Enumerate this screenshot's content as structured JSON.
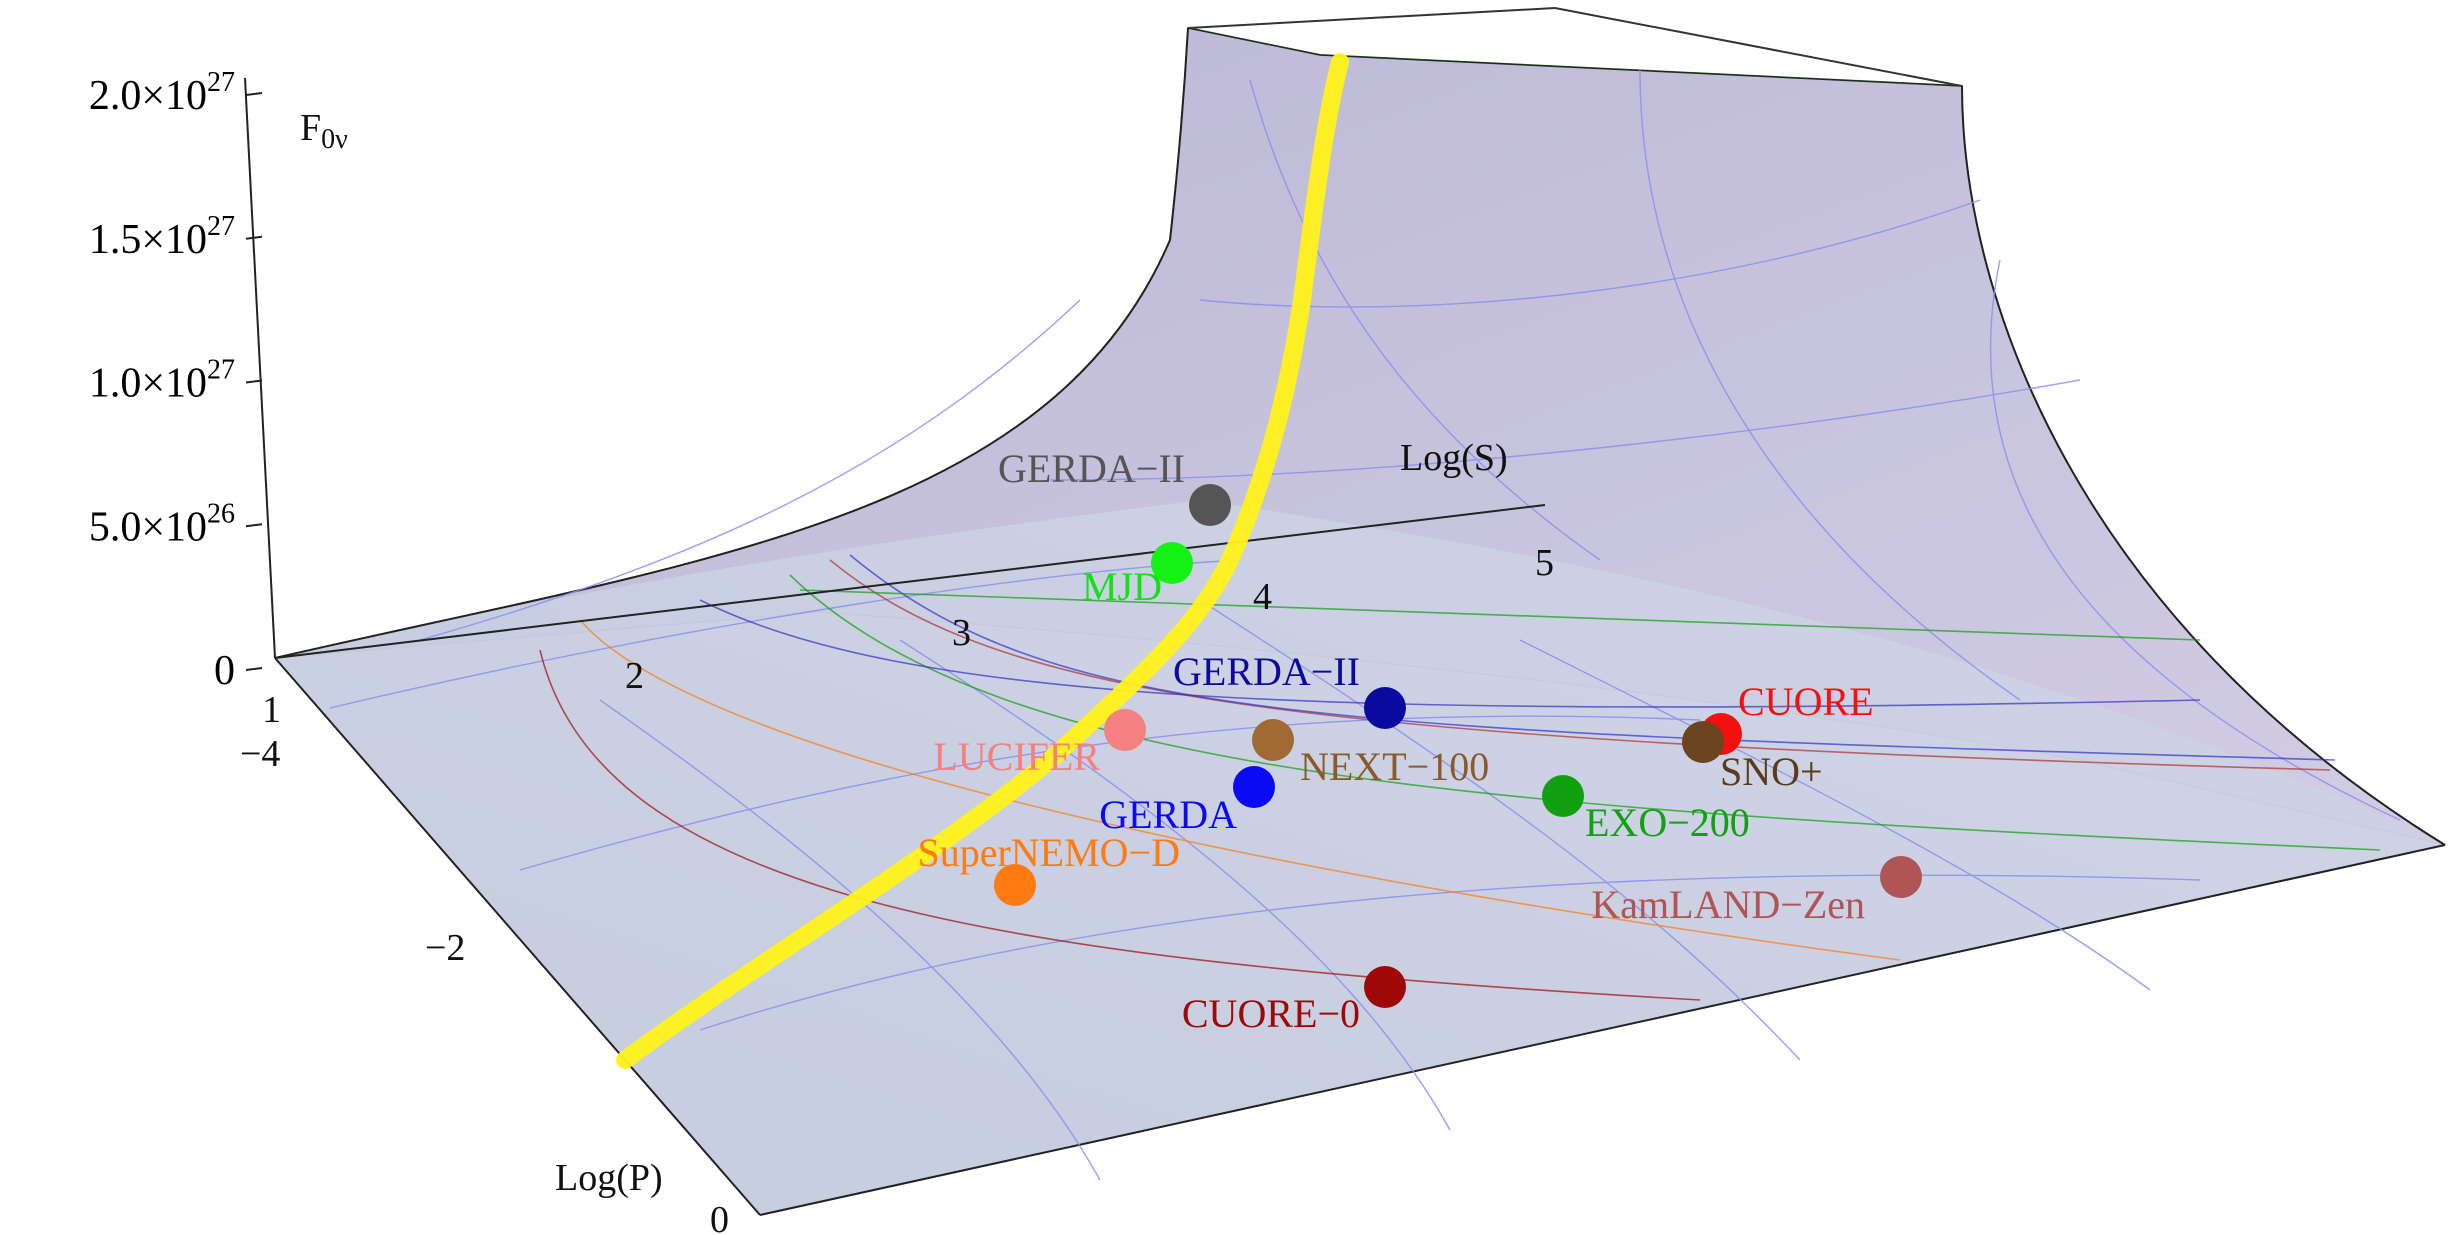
{
  "chart_data": {
    "type": "scatter",
    "title": "",
    "axes": {
      "z": {
        "label_main": "F",
        "label_sub": "0ν",
        "ticks": [
          {
            "value": 0,
            "mantissa": "0",
            "exp": ""
          },
          {
            "value": 5e+26,
            "mantissa": "5.0",
            "exp": "26"
          },
          {
            "value": 1e+27,
            "mantissa": "1.0",
            "exp": "27"
          },
          {
            "value": 1.5e+27,
            "mantissa": "1.5",
            "exp": "27"
          },
          {
            "value": 2e+27,
            "mantissa": "2.0",
            "exp": "27"
          }
        ],
        "times_symbol": "×10",
        "range": [
          0,
          2e+27
        ]
      },
      "x": {
        "label": "Log(S)",
        "ticks": [
          "1",
          "2",
          "3",
          "4",
          "5"
        ],
        "range": [
          1,
          5.5
        ]
      },
      "y": {
        "label": "Log(P)",
        "ticks": [
          "−4",
          "−2",
          "0"
        ],
        "range": [
          -4.5,
          0
        ]
      }
    },
    "surface": {
      "front_color": "#c5ccdf",
      "back_color": "#c9c4dc",
      "mesh_color": "#8a8ff0",
      "curve_color": "#fff21a"
    },
    "experiments": [
      {
        "name": "GERDA−II",
        "color": "#555555",
        "text_color": "#555555"
      },
      {
        "name": "MJD",
        "color": "#15f015",
        "text_color": "#15e015"
      },
      {
        "name": "GERDA−II",
        "color": "#0a0aa0",
        "text_color": "#0a0aa0"
      },
      {
        "name": "LUCIFER",
        "color": "#f58080",
        "text_color": "#f58080"
      },
      {
        "name": "NEXT−100",
        "color": "#a06a35",
        "text_color": "#8a5a2b"
      },
      {
        "name": "GERDA",
        "color": "#0a0af5",
        "text_color": "#0a0af5"
      },
      {
        "name": "CUORE",
        "color": "#f51010",
        "text_color": "#f51010"
      },
      {
        "name": "SNO+",
        "color": "#6a4520",
        "text_color": "#5a3a1a"
      },
      {
        "name": "EXO−200",
        "color": "#10a010",
        "text_color": "#10a010"
      },
      {
        "name": "SuperNEMO−D",
        "color": "#ff7a10",
        "text_color": "#ff7a10"
      },
      {
        "name": "KamLAND−Zen",
        "color": "#b05555",
        "text_color": "#b05555"
      },
      {
        "name": "CUORE−0",
        "color": "#a00808",
        "text_color": "#a00808"
      }
    ]
  }
}
